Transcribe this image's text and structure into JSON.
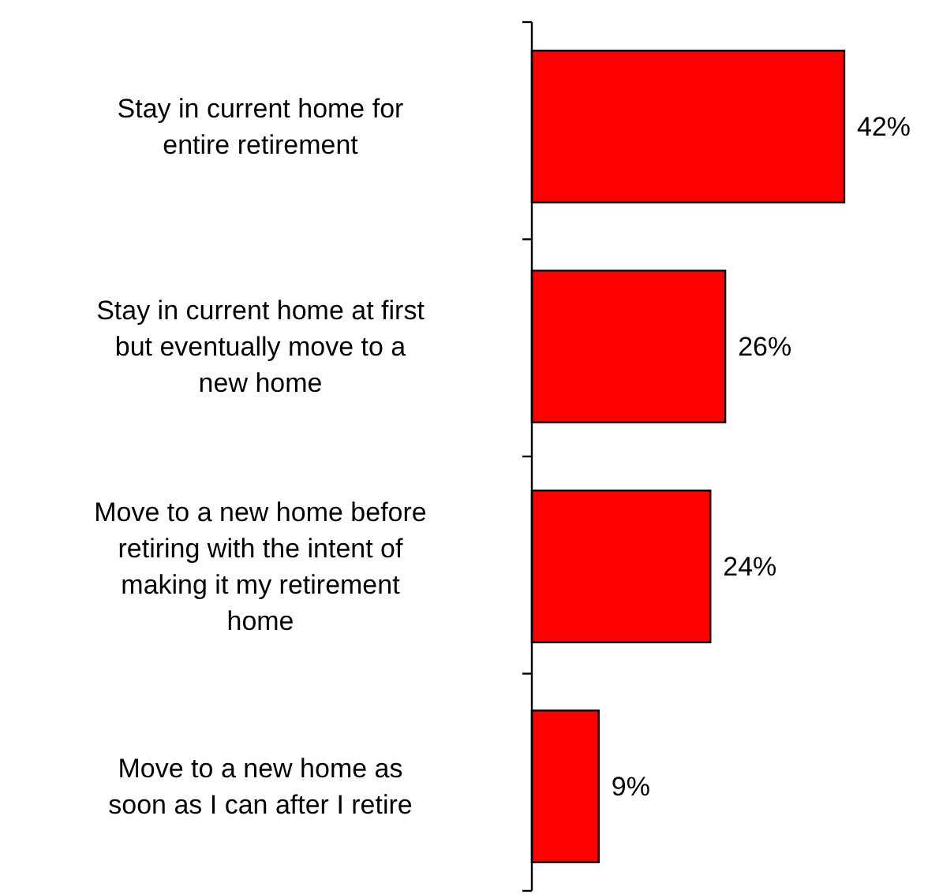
{
  "chart_data": {
    "type": "bar",
    "orientation": "horizontal",
    "categories": [
      "Stay in current home for\nentire retirement",
      "Stay in current home at first\nbut eventually move to a\nnew home",
      "Move to a new home before\nretiring with the intent of\nmaking it my retirement\nhome",
      "Move to a new home as\nsoon as I can after I retire"
    ],
    "values": [
      42,
      26,
      24,
      9
    ],
    "color": "#ff0000",
    "value_labels": [
      "42%",
      "26%",
      "24%",
      "9%"
    ],
    "tick_labels": "y"
  }
}
